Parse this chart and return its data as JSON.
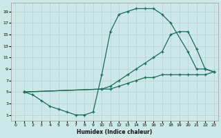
{
  "xlabel": "Humidex (Indice chaleur)",
  "bg_color": "#cce8e8",
  "grid_color": "#b8d4d4",
  "line_color": "#1a6b5a",
  "xlim": [
    -0.5,
    23.5
  ],
  "ylim": [
    0,
    20.5
  ],
  "xticks": [
    0,
    1,
    2,
    3,
    4,
    5,
    6,
    7,
    8,
    9,
    10,
    11,
    12,
    13,
    14,
    15,
    16,
    17,
    18,
    19,
    20,
    21,
    22,
    23
  ],
  "yticks": [
    1,
    3,
    5,
    7,
    9,
    11,
    13,
    15,
    17,
    19
  ],
  "line1_x": [
    1,
    2,
    3,
    4,
    5,
    6,
    7,
    8,
    9,
    10,
    11,
    12,
    13,
    14,
    15,
    16,
    17,
    18,
    20,
    21,
    22,
    23
  ],
  "line1_y": [
    5,
    4.5,
    3.5,
    2.5,
    2,
    1.5,
    1,
    1,
    1.5,
    8,
    15.5,
    18.5,
    19,
    19.5,
    19.5,
    19.5,
    18.5,
    17,
    12,
    9,
    9,
    8.5
  ],
  "line2_x": [
    1,
    10,
    11,
    12,
    13,
    14,
    15,
    16,
    17,
    18,
    19,
    20,
    21,
    22,
    23
  ],
  "line2_y": [
    5,
    5.5,
    6,
    7,
    8,
    9,
    10,
    11,
    12,
    15,
    15.5,
    15.5,
    12.5,
    9,
    8.5
  ],
  "line3_x": [
    1,
    10,
    11,
    12,
    13,
    14,
    15,
    16,
    17,
    18,
    19,
    20,
    21,
    22,
    23
  ],
  "line3_y": [
    5,
    5.5,
    5.5,
    6,
    6.5,
    7,
    7.5,
    7.5,
    8,
    8,
    8,
    8,
    8,
    8,
    8.5
  ]
}
